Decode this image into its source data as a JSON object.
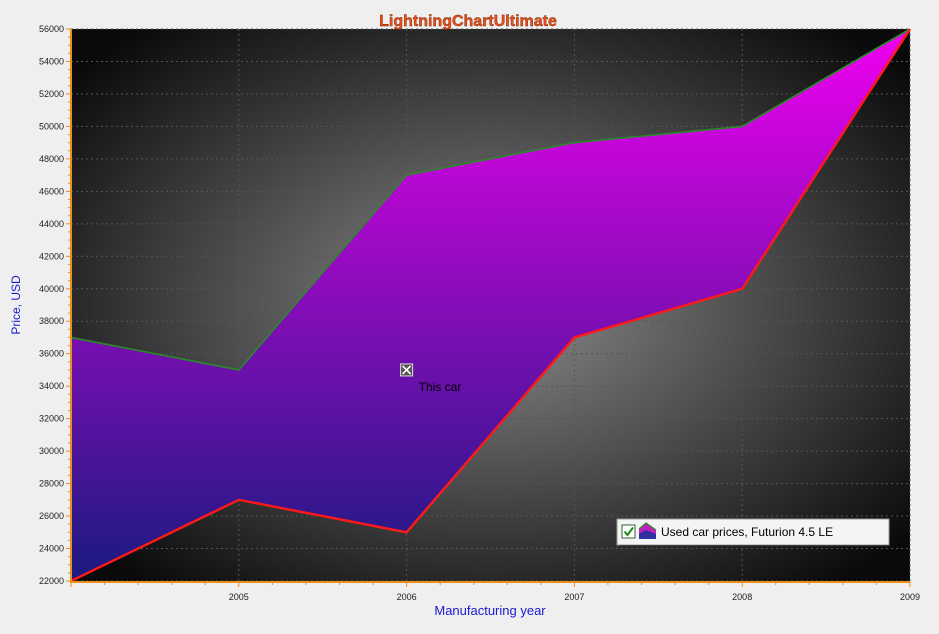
{
  "chart_data": {
    "type": "area",
    "title": "LightningChartUltimate",
    "xlabel": "Manufacturing year",
    "ylabel": "Price, USD",
    "xlim": [
      2004,
      2009
    ],
    "ylim": [
      22000,
      56000
    ],
    "x_ticks": [
      "2005",
      "2006",
      "2007",
      "2008",
      "2009"
    ],
    "y_ticks": [
      "22000",
      "24000",
      "26000",
      "28000",
      "30000",
      "32000",
      "34000",
      "36000",
      "38000",
      "40000",
      "42000",
      "44000",
      "46000",
      "48000",
      "50000",
      "52000",
      "54000",
      "56000"
    ],
    "grid": true,
    "legend": {
      "position": "bottom-right",
      "checked": true
    },
    "series": [
      {
        "name": "Used car prices, Futurion 4.5 LE",
        "x": [
          2004,
          2005,
          2006,
          2007,
          2008,
          2009
        ],
        "high": [
          37000,
          35000,
          47000,
          49000,
          50000,
          56000
        ],
        "low": [
          22000,
          27000,
          25000,
          37000,
          40000,
          56000
        ]
      }
    ],
    "annotations": [
      {
        "label": "This car",
        "x": 2006,
        "y": 35000
      }
    ],
    "colors": {
      "fill_top": "#f000f0",
      "fill_bottom": "#1a1a80",
      "high_line": "#2a8a2a",
      "low_line": "#ff1a1a",
      "title": "#e8501a",
      "axis_title": "#1a1ad0",
      "axis_line": "#e8901a"
    }
  }
}
